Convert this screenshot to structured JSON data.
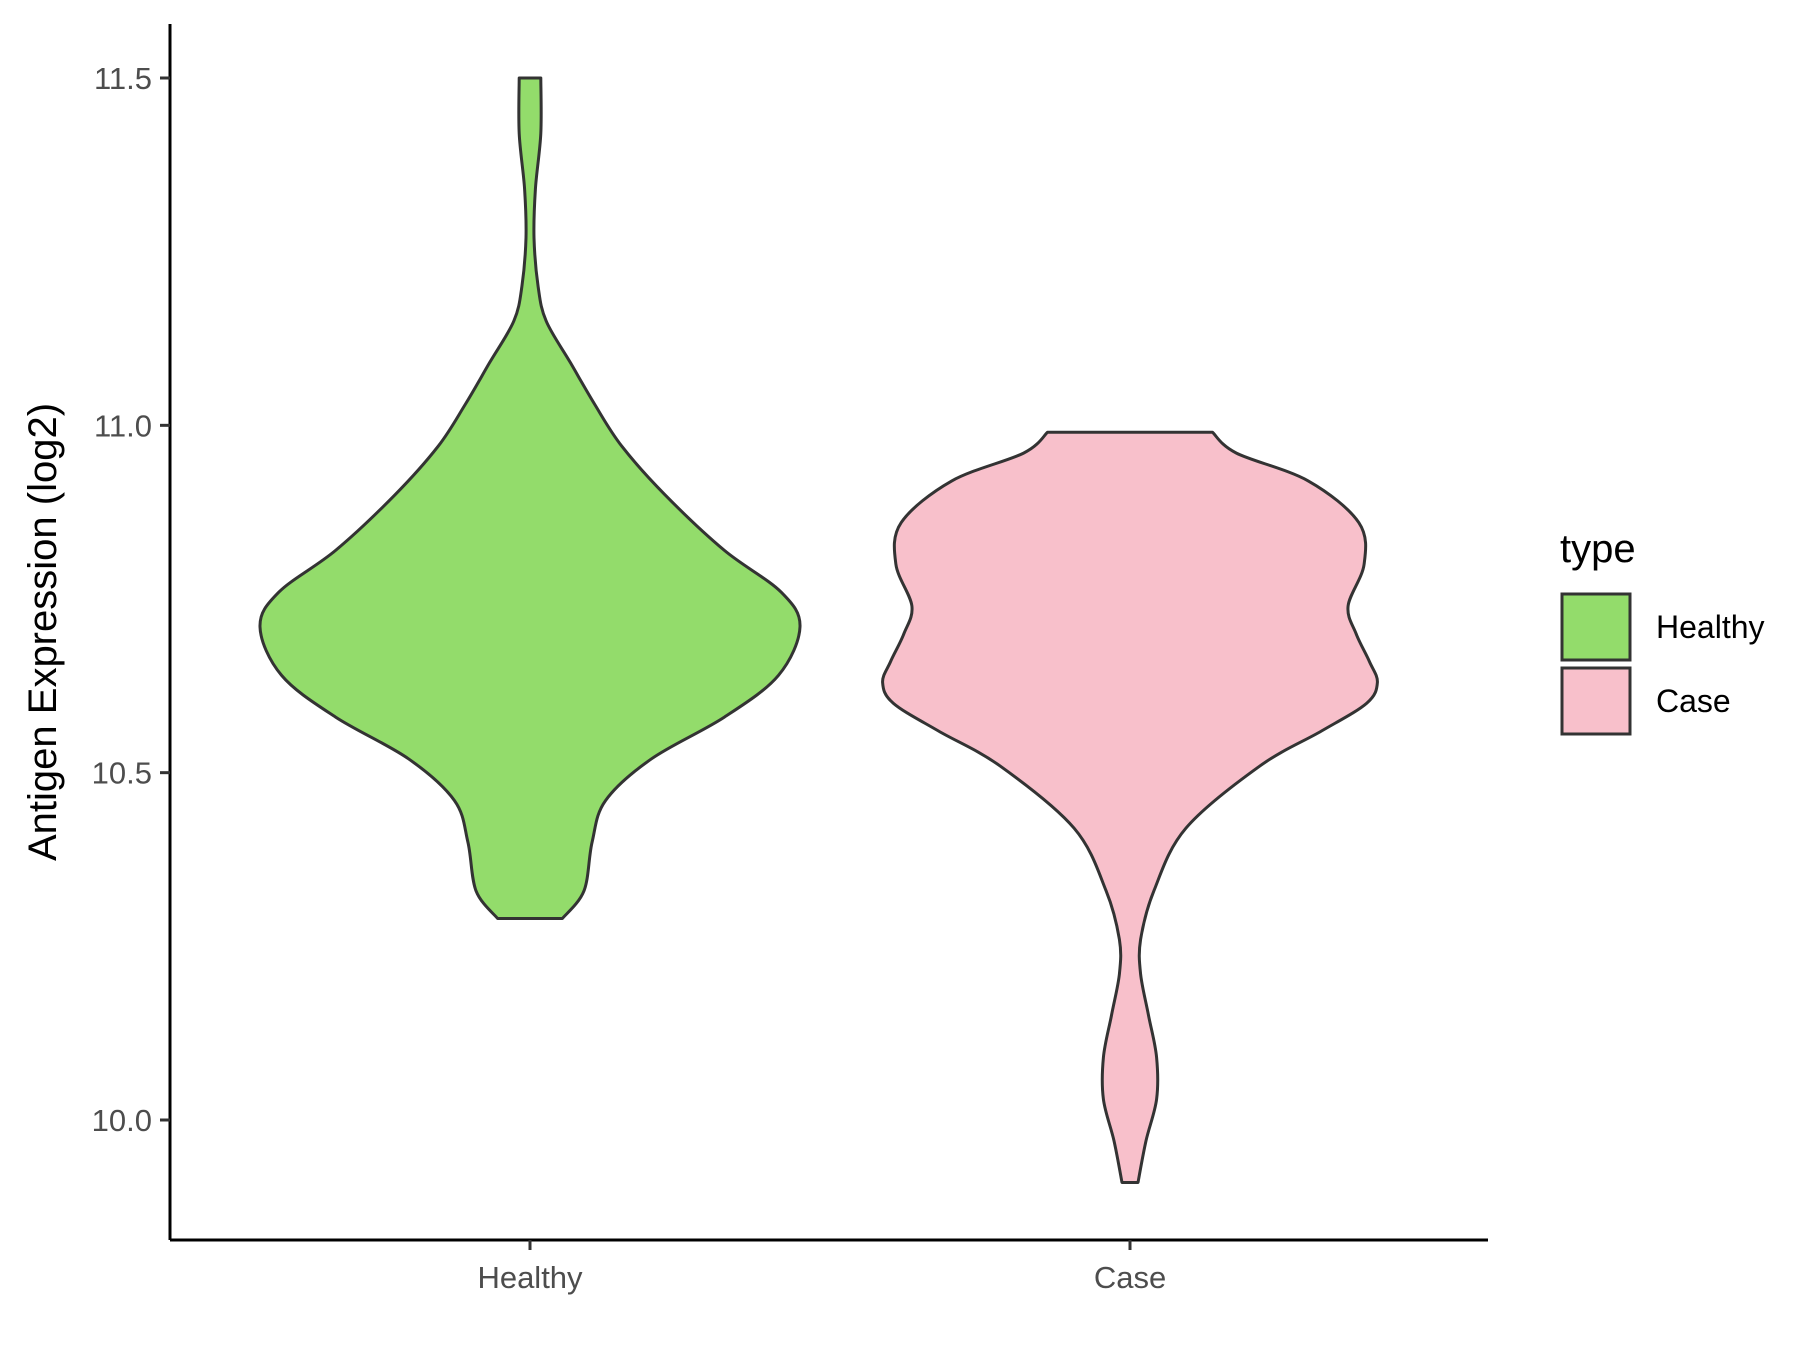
{
  "chart_data": {
    "type": "violin",
    "ylabel": "Antigen Expression (log2)",
    "xlabel": "",
    "categories": [
      "Healthy",
      "Case"
    ],
    "ylim": [
      9.83,
      11.58
    ],
    "yticks": [
      10.0,
      10.5,
      11.0,
      11.5
    ],
    "ytick_labels": [
      "10.0",
      "10.5",
      "11.0",
      "11.5"
    ],
    "grid": false,
    "legend": {
      "title": "type",
      "position": "right",
      "entries": [
        "Healthy",
        "Case"
      ]
    },
    "series": [
      {
        "category": "Healthy",
        "color": "#93dc6b",
        "y_min": 10.29,
        "y_max": 11.5,
        "density_profile": [
          [
            10.29,
            0.12
          ],
          [
            10.33,
            0.2
          ],
          [
            10.4,
            0.23
          ],
          [
            10.46,
            0.28
          ],
          [
            10.52,
            0.45
          ],
          [
            10.58,
            0.72
          ],
          [
            10.64,
            0.92
          ],
          [
            10.71,
            1.0
          ],
          [
            10.76,
            0.93
          ],
          [
            10.82,
            0.72
          ],
          [
            10.9,
            0.5
          ],
          [
            10.97,
            0.34
          ],
          [
            11.03,
            0.24
          ],
          [
            11.09,
            0.15
          ],
          [
            11.15,
            0.06
          ],
          [
            11.2,
            0.03
          ],
          [
            11.27,
            0.015
          ],
          [
            11.34,
            0.02
          ],
          [
            11.42,
            0.04
          ],
          [
            11.5,
            0.04
          ]
        ]
      },
      {
        "category": "Case",
        "color": "#f8c0cb",
        "y_min": 9.91,
        "y_max": 10.99,
        "density_profile": [
          [
            9.91,
            0.03
          ],
          [
            9.97,
            0.06
          ],
          [
            10.03,
            0.1
          ],
          [
            10.09,
            0.1
          ],
          [
            10.15,
            0.07
          ],
          [
            10.21,
            0.04
          ],
          [
            10.26,
            0.04
          ],
          [
            10.33,
            0.09
          ],
          [
            10.42,
            0.21
          ],
          [
            10.51,
            0.49
          ],
          [
            10.56,
            0.72
          ],
          [
            10.6,
            0.89
          ],
          [
            10.63,
            0.93
          ],
          [
            10.66,
            0.9
          ],
          [
            10.7,
            0.85
          ],
          [
            10.74,
            0.82
          ],
          [
            10.8,
            0.88
          ],
          [
            10.86,
            0.86
          ],
          [
            10.92,
            0.67
          ],
          [
            10.96,
            0.4
          ],
          [
            10.99,
            0.31
          ]
        ]
      }
    ]
  }
}
